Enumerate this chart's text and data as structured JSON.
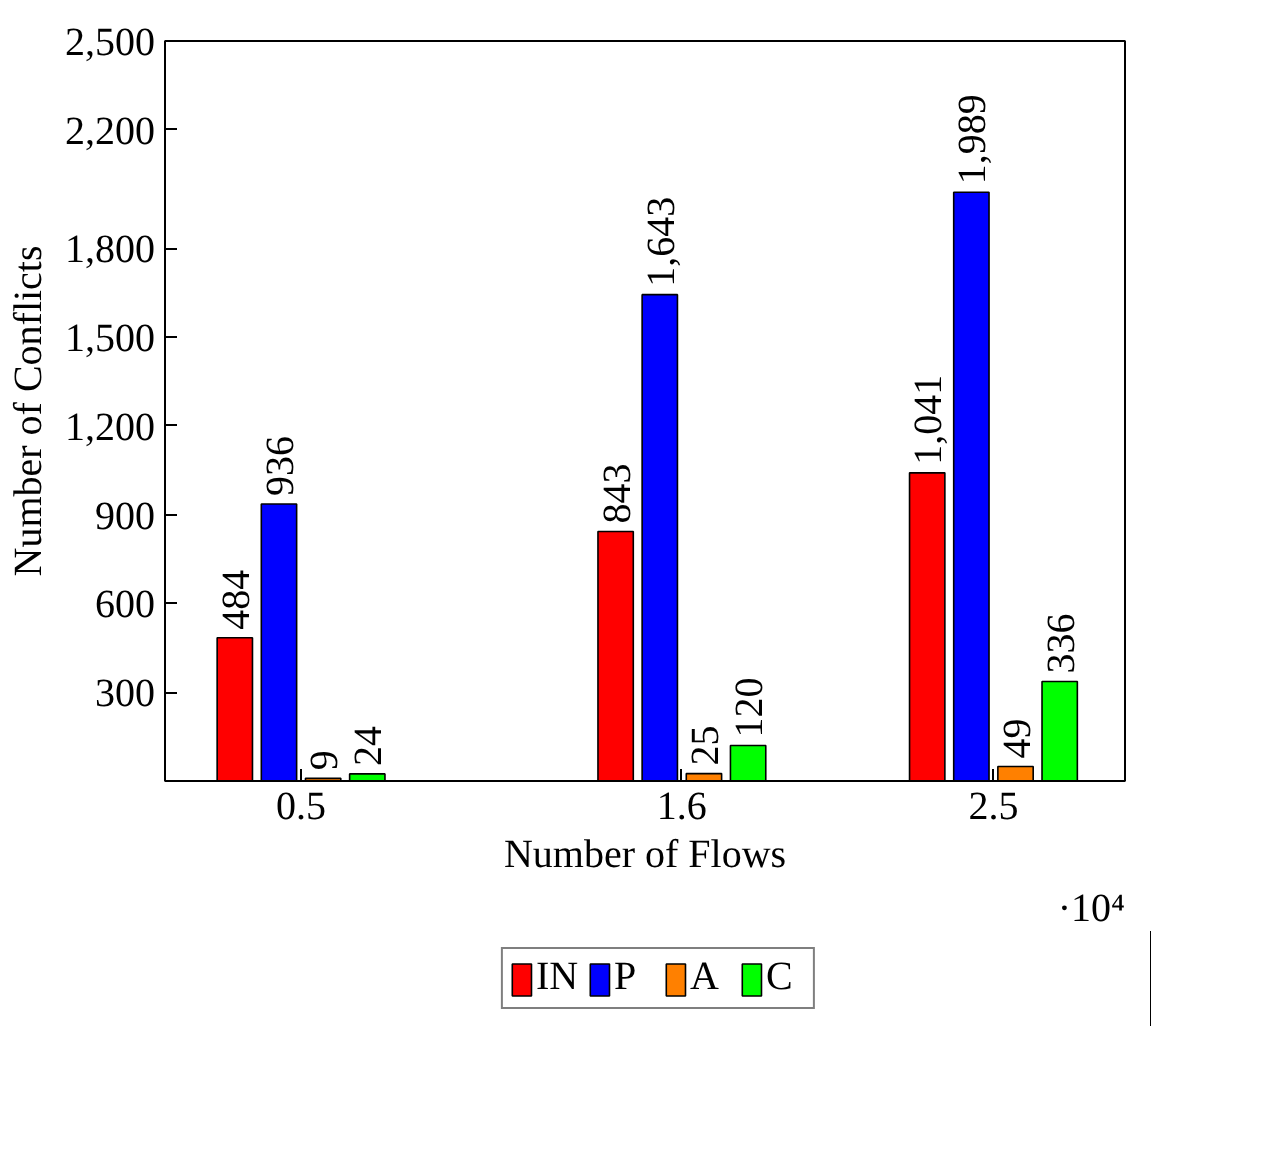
{
  "chart_data": {
    "type": "bar",
    "xlabel": "Number of Flows",
    "ylabel": "Number of Conflicts",
    "x": [
      0.5,
      1.6,
      2.5
    ],
    "xlim": [
      0.107,
      2.88
    ],
    "xticks": [
      0.5,
      1.6,
      2.5
    ],
    "ylim": [
      0,
      2500
    ],
    "yticks": [
      300,
      600,
      900,
      {
        "value": 1200,
        "label": "1,200"
      },
      {
        "value": 1500,
        "label": "1,500"
      },
      {
        "value": 1800,
        "label": "1,800"
      },
      {
        "value": 2200,
        "label": "2,200"
      },
      {
        "value": 2500,
        "label": "2,500"
      }
    ],
    "series": [
      {
        "name": "IN",
        "color": "#ff0000",
        "values": [
          484,
          843,
          1041
        ],
        "value_labels": [
          "484",
          "843",
          "1,041"
        ]
      },
      {
        "name": "P",
        "color": "#0000ff",
        "values": [
          936,
          1643,
          1989
        ],
        "value_labels": [
          "936",
          "1,643",
          "1,989"
        ]
      },
      {
        "name": "A",
        "color": "#ff8000",
        "values": [
          9,
          25,
          49
        ],
        "value_labels": [
          "9",
          "25",
          "49"
        ]
      },
      {
        "name": "C",
        "color": "#00ff00",
        "values": [
          24,
          120,
          336
        ],
        "value_labels": [
          "24",
          "120",
          "336"
        ]
      }
    ],
    "legend": "bottom",
    "grid": false,
    "annotations": [
      "·10⁴"
    ]
  }
}
